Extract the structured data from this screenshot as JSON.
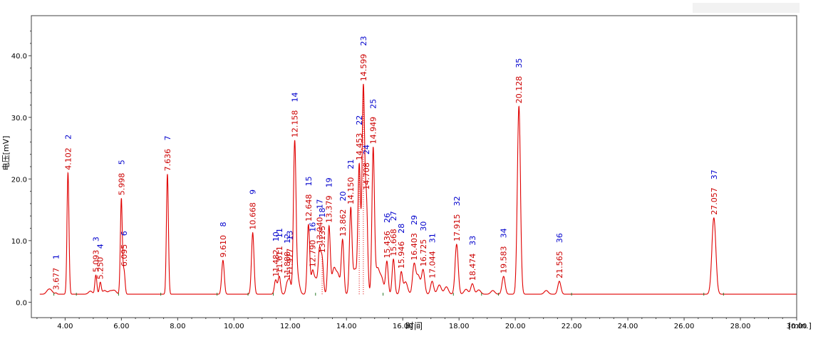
{
  "chart_data": {
    "type": "line",
    "title": "",
    "xlabel": "时间",
    "ylabel": "电压[mV]",
    "x_unit_label": "[min.]",
    "xlim": [
      2.8,
      30.0
    ],
    "ylim": [
      -2.5,
      46.5
    ],
    "x_ticks": [
      "4.00",
      "6.00",
      "8.00",
      "10.00",
      "12.00",
      "14.00",
      "16.00",
      "18.00",
      "20.00",
      "22.00",
      "24.00",
      "26.00",
      "28.00",
      "30.00"
    ],
    "x_tick_values": [
      4,
      6,
      8,
      10,
      12,
      14,
      16,
      18,
      20,
      22,
      24,
      26,
      28,
      30
    ],
    "y_ticks": [
      "0.0",
      "10.0",
      "20.0",
      "30.0",
      "40.0"
    ],
    "y_tick_values": [
      0,
      10,
      20,
      30,
      40
    ],
    "colors": {
      "trace": "#e00000",
      "peak_number": "#0000cc",
      "retention_label": "#cc0000",
      "frame": "#404040",
      "grid": "#c8c8c8"
    },
    "baseline": 1.3,
    "peaks": [
      {
        "n": "1",
        "rt": "3.677",
        "t": 3.677,
        "h": 1.5
      },
      {
        "n": "2",
        "rt": "4.102",
        "t": 4.102,
        "h": 21.0
      },
      {
        "n": "3",
        "rt": "5.093",
        "t": 5.093,
        "h": 4.4
      },
      {
        "n": "4",
        "rt": "5.250",
        "t": 5.25,
        "h": 3.2
      },
      {
        "n": "5",
        "rt": "5.998",
        "t": 5.998,
        "h": 16.8
      },
      {
        "n": "6",
        "rt": "6.095",
        "t": 6.095,
        "h": 5.0
      },
      {
        "n": "7",
        "rt": "7.636",
        "t": 7.636,
        "h": 20.8
      },
      {
        "n": "8",
        "rt": "9.610",
        "t": 9.61,
        "h": 6.8
      },
      {
        "n": "9",
        "rt": "10.668",
        "t": 10.668,
        "h": 11.3
      },
      {
        "n": "10",
        "rt": "11.482",
        "t": 11.482,
        "h": 3.6
      },
      {
        "n": "11",
        "rt": "11.611",
        "t": 11.611,
        "h": 4.2
      },
      {
        "n": "12",
        "rt": "11.888",
        "t": 11.888,
        "h": 3.0
      },
      {
        "n": "13",
        "rt": "11.977",
        "t": 11.977,
        "h": 3.6
      },
      {
        "n": "14",
        "rt": "12.158",
        "t": 12.158,
        "h": 25.0
      },
      {
        "n": "15",
        "rt": "12.648",
        "t": 12.648,
        "h": 12.6
      },
      {
        "n": "16",
        "rt": "12.790",
        "t": 12.79,
        "h": 4.4
      },
      {
        "n": "17",
        "rt": "13.040",
        "t": 13.04,
        "h": 8.0
      },
      {
        "n": "18",
        "rt": "13.135",
        "t": 13.135,
        "h": 6.8
      },
      {
        "n": "19",
        "rt": "13.379",
        "t": 13.379,
        "h": 12.2
      },
      {
        "n": "20",
        "rt": "13.862",
        "t": 13.862,
        "h": 10.0
      },
      {
        "n": "21",
        "rt": "14.150",
        "t": 14.15,
        "h": 15.0
      },
      {
        "n": "22",
        "rt": "14.453",
        "t": 14.453,
        "h": 22.0
      },
      {
        "n": "23",
        "rt": "14.599",
        "t": 14.599,
        "h": 34.5
      },
      {
        "n": "24",
        "rt": "14.708",
        "t": 14.708,
        "h": 16.0
      },
      {
        "n": "25",
        "rt": "14.949",
        "t": 14.949,
        "h": 24.8
      },
      {
        "n": "26",
        "rt": "15.436",
        "t": 15.436,
        "h": 6.6
      },
      {
        "n": "27",
        "rt": "15.668",
        "t": 15.668,
        "h": 7.0
      },
      {
        "n": "28",
        "rt": "15.946",
        "t": 15.946,
        "h": 4.8
      },
      {
        "n": "29",
        "rt": "16.403",
        "t": 16.403,
        "h": 6.0
      },
      {
        "n": "30",
        "rt": "16.725",
        "t": 16.725,
        "h": 5.2
      },
      {
        "n": "31",
        "rt": "17.044",
        "t": 17.044,
        "h": 3.4
      },
      {
        "n": "32",
        "rt": "17.915",
        "t": 17.915,
        "h": 9.4
      },
      {
        "n": "33",
        "rt": "18.474",
        "t": 18.474,
        "h": 3.0
      },
      {
        "n": "34",
        "rt": "19.583",
        "t": 19.583,
        "h": 4.2
      },
      {
        "n": "35",
        "rt": "20.128",
        "t": 20.128,
        "h": 31.8
      },
      {
        "n": "36",
        "rt": "21.565",
        "t": 21.565,
        "h": 3.4
      },
      {
        "n": "37",
        "rt": "27.057",
        "t": 27.057,
        "h": 13.7
      }
    ],
    "divider_lines": [
      13.135,
      14.453,
      14.599
    ],
    "grid": false,
    "legend": "none"
  }
}
